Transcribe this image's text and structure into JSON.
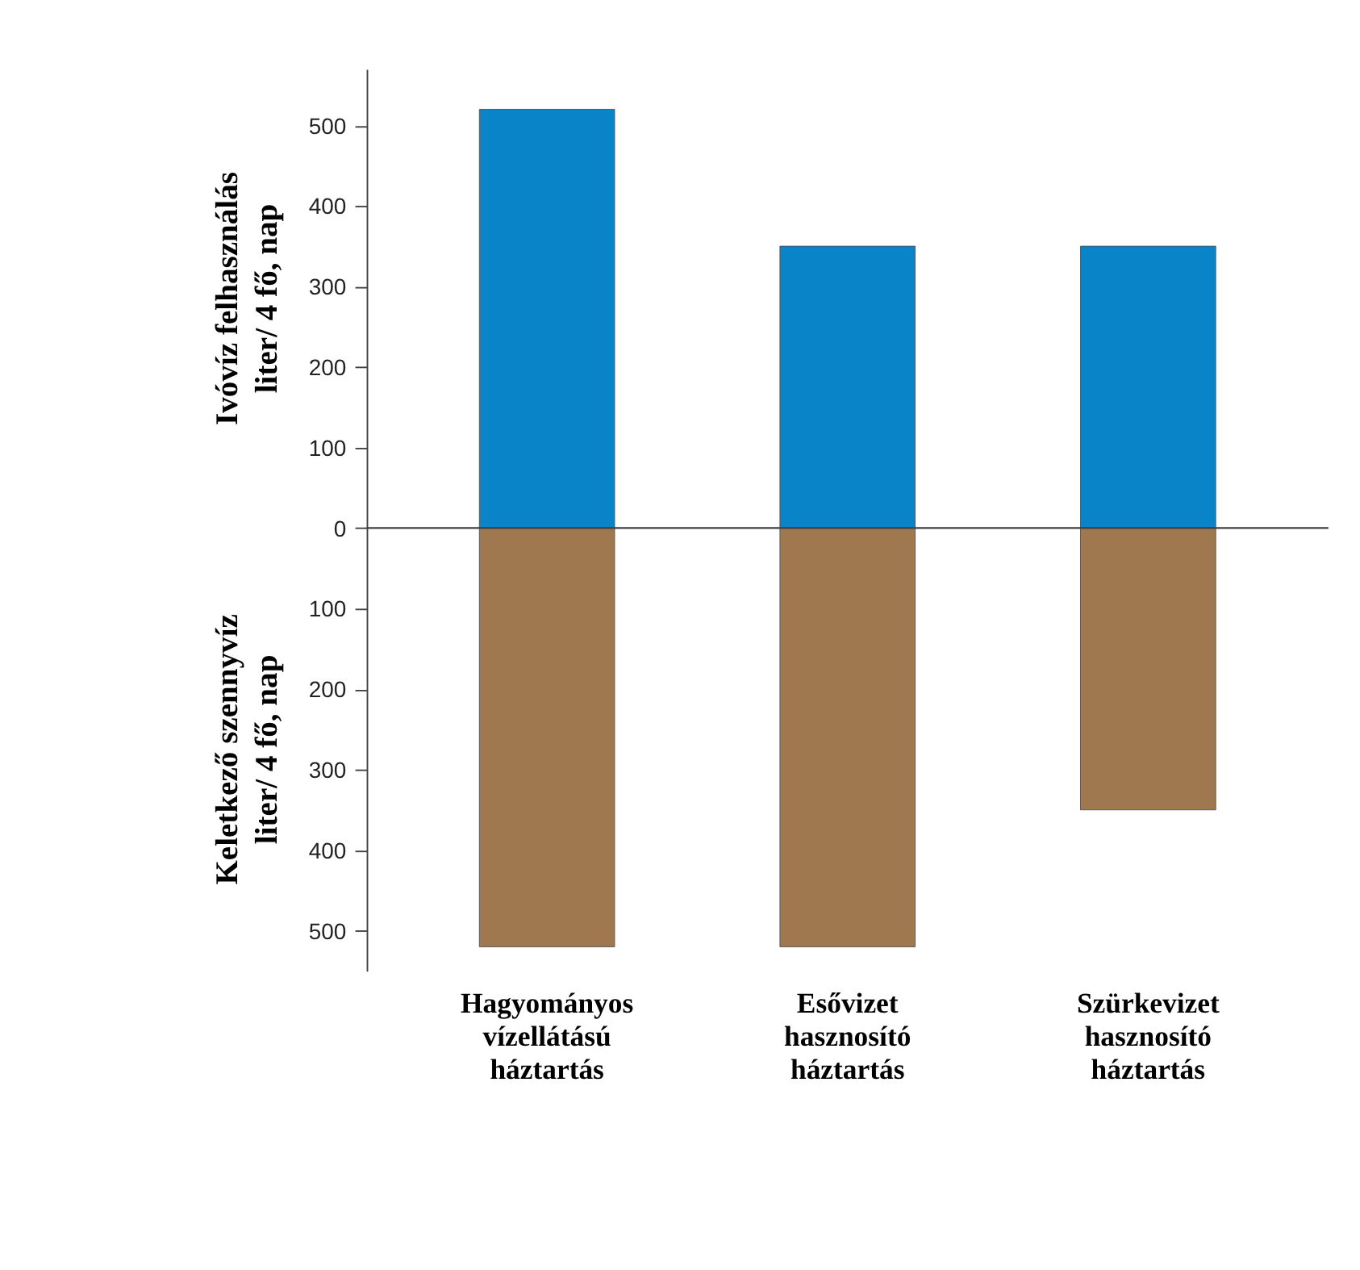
{
  "chart_data": {
    "type": "bar",
    "stacked": true,
    "ylabel": "Ivóvíz felhasználás\nliter/ 4 fő, nap",
    "annotations": [
      "Keletkező szennyvíz\nliter/ 4 fő, nap"
    ],
    "categories": [
      "Hagyományos vízellátású háztartás",
      "Esővizet hasznosító háztartás",
      "Szürkevizet hasznosító háztartás"
    ],
    "series": [
      {
        "color": "#0a84c8",
        "values": [
          520,
          350,
          350
        ]
      },
      {
        "color": "#a07850",
        "values": [
          -520,
          -520,
          -350
        ]
      }
    ],
    "ylim": [
      -550,
      570
    ],
    "yticks": [
      {
        "value": -500,
        "label": "500"
      },
      {
        "value": -400,
        "label": "400"
      },
      {
        "value": -300,
        "label": "300"
      },
      {
        "value": -200,
        "label": "200"
      },
      {
        "value": -100,
        "label": "100"
      },
      0,
      100,
      200,
      300,
      400,
      500
    ],
    "ref_lines": [
      {
        "axis": "y",
        "value": 0,
        "color": "#404040"
      }
    ],
    "grid": false
  }
}
